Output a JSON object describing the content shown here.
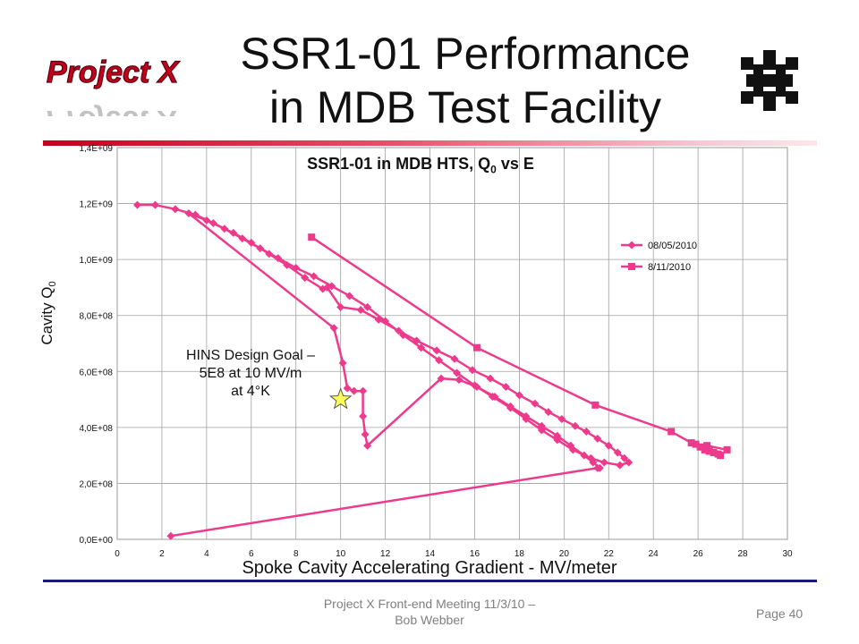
{
  "slide": {
    "title_line1": "SSR1-01 Performance",
    "title_line2": "in MDB Test Facility",
    "logo_text": "Project X",
    "footer_line1": "Project X Front-end Meeting 11/3/10 –",
    "footer_line2": "Bob Webber",
    "page": "Page 40"
  },
  "colors": {
    "series": "#ee3a8c",
    "accent_rule": "#c4001a",
    "footer_rule": "#1a1a6e",
    "grid": "#a0a0a0",
    "star": "#ffff55"
  },
  "annotation": {
    "line1": "HINS Design Goal –",
    "line2": "5E8 at 10 MV/m",
    "line3": "at 4°K"
  },
  "chart_data": {
    "type": "scatter",
    "title_main": "SSR1-01 in MDB HTS, Q",
    "title_sub": "0",
    "title_tail": " vs E",
    "xlabel": "Spoke Cavity Accelerating Gradient - MV/meter",
    "ylabel_main": "Cavity Q",
    "ylabel_sub": "0",
    "xlim": [
      0,
      30
    ],
    "ylim": [
      0,
      1400000000
    ],
    "x_ticks": [
      "0",
      "2",
      "4",
      "6",
      "8",
      "10",
      "12",
      "14",
      "16",
      "18",
      "20",
      "22",
      "24",
      "26",
      "28",
      "30"
    ],
    "y_ticks": [
      "0,0E+00",
      "2,0E+08",
      "4,0E+08",
      "6,0E+08",
      "8,0E+08",
      "1,0E+09",
      "1,2E+09",
      "1,4E+09"
    ],
    "grid": true,
    "legend_position": "right",
    "series": [
      {
        "name": "08/05/2010",
        "marker": "diamond",
        "points": [
          [
            0.9,
            1195000000.0
          ],
          [
            1.7,
            1195000000.0
          ],
          [
            2.6,
            1180000000.0
          ],
          [
            3.5,
            1160000000.0
          ],
          [
            4.3,
            1130000000.0
          ],
          [
            5.2,
            1095000000.0
          ],
          [
            6.0,
            1060000000.0
          ],
          [
            6.8,
            1020000000.0
          ],
          [
            7.6,
            980000000.0
          ],
          [
            8.4,
            935000000.0
          ],
          [
            9.2,
            895000000.0
          ],
          [
            9.4,
            900000000.0
          ],
          [
            10.0,
            830000000.0
          ],
          [
            10.9,
            820000000.0
          ],
          [
            11.7,
            785000000.0
          ],
          [
            12.6,
            745000000.0
          ],
          [
            13.4,
            710000000.0
          ],
          [
            14.3,
            675000000.0
          ],
          [
            15.1,
            645000000.0
          ],
          [
            15.9,
            605000000.0
          ],
          [
            16.7,
            575000000.0
          ],
          [
            17.4,
            545000000.0
          ],
          [
            18.0,
            515000000.0
          ],
          [
            18.7,
            485000000.0
          ],
          [
            19.3,
            455000000.0
          ],
          [
            19.9,
            430000000.0
          ],
          [
            20.5,
            405000000.0
          ],
          [
            21.0,
            385000000.0
          ],
          [
            21.5,
            360000000.0
          ],
          [
            22.0,
            335000000.0
          ],
          [
            22.4,
            310000000.0
          ],
          [
            22.7,
            290000000.0
          ],
          [
            22.9,
            275000000.0
          ],
          [
            22.5,
            265000000.0
          ],
          [
            21.8,
            275000000.0
          ],
          [
            21.2,
            290000000.0
          ],
          [
            20.4,
            320000000.0
          ],
          [
            19.7,
            355000000.0
          ],
          [
            19.0,
            390000000.0
          ],
          [
            18.3,
            430000000.0
          ],
          [
            17.6,
            470000000.0
          ],
          [
            16.8,
            510000000.0
          ],
          [
            16.0,
            550000000.0
          ],
          [
            15.2,
            595000000.0
          ],
          [
            14.4,
            640000000.0
          ],
          [
            13.6,
            685000000.0
          ],
          [
            12.8,
            730000000.0
          ],
          [
            12.0,
            780000000.0
          ],
          [
            11.2,
            830000000.0
          ],
          [
            10.4,
            870000000.0
          ],
          [
            9.6,
            905000000.0
          ],
          [
            8.8,
            940000000.0
          ],
          [
            8.0,
            970000000.0
          ],
          [
            7.2,
            1005000000.0
          ],
          [
            6.4,
            1040000000.0
          ],
          [
            5.6,
            1075000000.0
          ],
          [
            4.8,
            1110000000.0
          ],
          [
            4.0,
            1140000000.0
          ],
          [
            3.2,
            1165000000.0
          ],
          [
            9.7,
            755000000.0
          ],
          [
            10.1,
            630000000.0
          ],
          [
            10.3,
            540000000.0
          ],
          [
            10.6,
            530000000.0
          ],
          [
            11.0,
            530000000.0
          ],
          [
            11.0,
            440000000.0
          ],
          [
            11.1,
            375000000.0
          ],
          [
            11.2,
            335000000.0
          ],
          [
            14.5,
            575000000.0
          ],
          [
            15.3,
            570000000.0
          ],
          [
            16.1,
            545000000.0
          ],
          [
            16.9,
            510000000.0
          ],
          [
            17.6,
            475000000.0
          ],
          [
            18.3,
            440000000.0
          ],
          [
            19.0,
            405000000.0
          ],
          [
            19.7,
            370000000.0
          ],
          [
            20.3,
            335000000.0
          ],
          [
            20.9,
            300000000.0
          ],
          [
            21.3,
            275000000.0
          ],
          [
            21.6,
            255000000.0
          ],
          [
            21.5,
            255000000.0
          ],
          [
            2.4,
            12000000.0
          ]
        ]
      },
      {
        "name": "8/11/2010",
        "marker": "square",
        "points": [
          [
            8.7,
            1080000000.0
          ],
          [
            16.1,
            685000000.0
          ],
          [
            21.4,
            480000000.0
          ],
          [
            24.8,
            385000000.0
          ],
          [
            25.7,
            345000000.0
          ],
          [
            25.9,
            340000000.0
          ],
          [
            26.1,
            330000000.0
          ],
          [
            26.3,
            320000000.0
          ],
          [
            26.5,
            315000000.0
          ],
          [
            26.7,
            310000000.0
          ],
          [
            26.9,
            305000000.0
          ],
          [
            27.0,
            300000000.0
          ],
          [
            27.3,
            320000000.0
          ],
          [
            26.4,
            335000000.0
          ]
        ]
      }
    ]
  }
}
